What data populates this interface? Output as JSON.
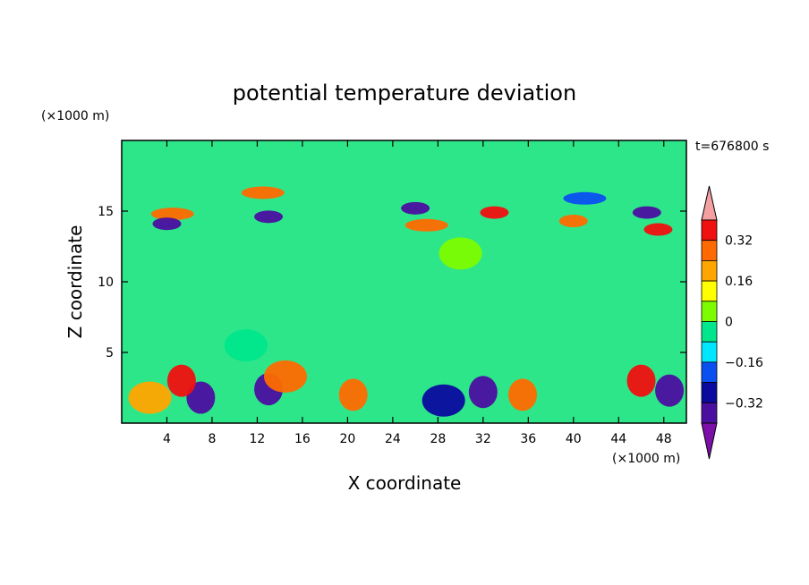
{
  "chart_data": {
    "type": "heatmap",
    "title": "potential temperature deviation",
    "xlabel": "X coordinate",
    "ylabel": "Z coordinate",
    "x_unit_label": "(×1000 m)",
    "y_unit_label": "(×1000 m)",
    "time_label": "t=676800 s",
    "xlim": [
      0,
      50
    ],
    "ylim": [
      0,
      20
    ],
    "x_ticks": [
      4,
      8,
      12,
      16,
      20,
      24,
      28,
      32,
      36,
      40,
      44,
      48
    ],
    "y_ticks": [
      5,
      10,
      15
    ],
    "colorbar": {
      "levels": [
        -0.4,
        -0.32,
        -0.24,
        -0.16,
        -0.08,
        0,
        0.08,
        0.16,
        0.24,
        0.32,
        0.4
      ],
      "tick_labels": [
        "0.32",
        "0.16",
        "0",
        "−0.16",
        "−0.32"
      ],
      "tick_values": [
        0.32,
        0.16,
        0,
        -0.16,
        -0.32
      ],
      "colors": [
        "#7b0fa8",
        "#4b0fa0",
        "#0a0a9e",
        "#0a50f0",
        "#00e6ff",
        "#00e68c",
        "#7cfc00",
        "#ffff00",
        "#ffa500",
        "#ff6a00",
        "#f01010",
        "#f4a0a0"
      ]
    },
    "features": [
      {
        "x": 4.5,
        "z": 14.8,
        "value": 0.3
      },
      {
        "x": 12.5,
        "z": 16.3,
        "value": 0.28
      },
      {
        "x": 13,
        "z": 14.6,
        "value": -0.35
      },
      {
        "x": 4,
        "z": 14.1,
        "value": -0.33
      },
      {
        "x": 27,
        "z": 14,
        "value": 0.3
      },
      {
        "x": 33,
        "z": 14.9,
        "value": 0.33
      },
      {
        "x": 40,
        "z": 14.3,
        "value": 0.32
      },
      {
        "x": 47.5,
        "z": 13.7,
        "value": 0.38
      },
      {
        "x": 26,
        "z": 15.2,
        "value": -0.33
      },
      {
        "x": 41,
        "z": 15.9,
        "value": -0.2
      },
      {
        "x": 46.5,
        "z": 14.9,
        "value": -0.35
      },
      {
        "x": 13,
        "z": 2.4,
        "value": -0.38
      },
      {
        "x": 2.5,
        "z": 1.8,
        "value": 0.2
      },
      {
        "x": 7,
        "z": 1.8,
        "value": -0.34
      },
      {
        "x": 20.5,
        "z": 2.0,
        "value": 0.32
      },
      {
        "x": 35.5,
        "z": 2.0,
        "value": 0.32
      },
      {
        "x": 32,
        "z": 2.2,
        "value": -0.33
      },
      {
        "x": 28.5,
        "z": 1.6,
        "value": -0.3
      },
      {
        "x": 48.5,
        "z": 2.3,
        "value": -0.36
      },
      {
        "x": 46,
        "z": 3.0,
        "value": 0.38
      },
      {
        "x": 5.3,
        "z": 3.0,
        "value": 0.38
      },
      {
        "x": 14.5,
        "z": 3.3,
        "value": 0.3
      },
      {
        "x": 11,
        "z": 5.5,
        "value": -0.05
      },
      {
        "x": 30,
        "z": 12,
        "value": 0.05
      }
    ]
  }
}
